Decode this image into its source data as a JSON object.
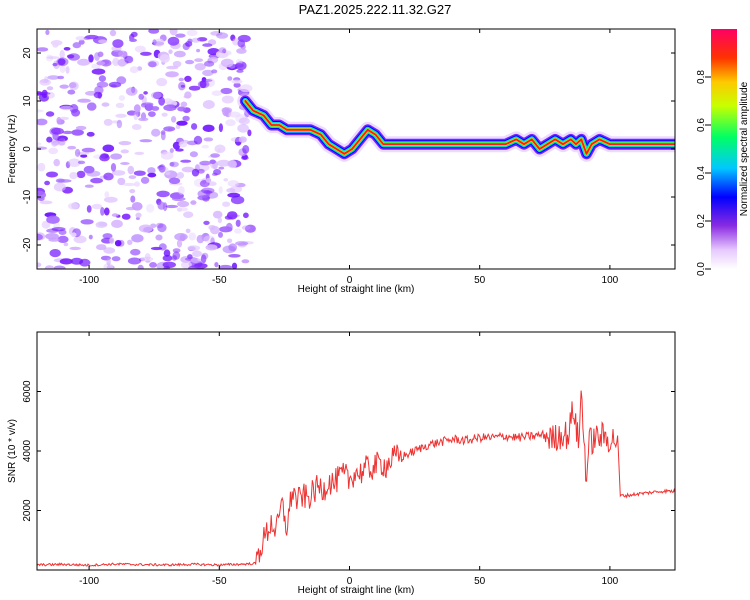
{
  "title": "PAZ1.2025.222.11.32.G27",
  "colors": {
    "snr_line": "#ee3333",
    "spectrogram_noise": "#7b1fff"
  },
  "chart_data": [
    {
      "type": "heatmap",
      "xlabel": "Height of straight line (km)",
      "ylabel": "Frequency (Hz)",
      "xlim": [
        -120,
        125
      ],
      "ylim": [
        -25,
        25
      ],
      "xticks": [
        -100,
        -50,
        0,
        50,
        100
      ],
      "yticks": [
        -20,
        -10,
        0,
        10,
        20
      ],
      "noise_region_x": [
        -120,
        -38
      ],
      "ridge": {
        "x": [
          -40,
          -37,
          -33,
          -30,
          -27,
          -24,
          -20,
          -15,
          -11,
          -8,
          -5,
          -2,
          1,
          4,
          7,
          10,
          13,
          18,
          25,
          40,
          60,
          64,
          67,
          70,
          73,
          76,
          79,
          82,
          85,
          87,
          89,
          91,
          93,
          96,
          100,
          105,
          110,
          125
        ],
        "y": [
          10,
          8,
          7,
          5,
          5,
          4,
          4,
          4,
          3,
          1,
          0,
          -1,
          0,
          2,
          4,
          3,
          1,
          1,
          1,
          1,
          1,
          2,
          1,
          2,
          0,
          1,
          2,
          1,
          2,
          1,
          2,
          -1,
          1,
          2,
          1,
          1,
          1,
          1
        ]
      },
      "colorbar": {
        "label": "Normalized spectral amplitude",
        "ticks": [
          "0.0",
          "0.2",
          "0.4",
          "0.6",
          "0.8"
        ],
        "range": [
          0,
          1
        ]
      }
    },
    {
      "type": "line",
      "xlabel": "Height of straight line (km)",
      "ylabel": "SNR (10 * v/v)",
      "xlim": [
        -120,
        125
      ],
      "ylim": [
        0,
        8000
      ],
      "xticks": [
        -100,
        -50,
        0,
        50,
        100
      ],
      "yticks": [
        2000,
        4000,
        6000
      ],
      "series": [
        {
          "x": [
            -120,
            -110,
            -100,
            -90,
            -80,
            -70,
            -60,
            -50,
            -40,
            -36,
            -34,
            -32,
            -30,
            -28,
            -26,
            -24,
            -22,
            -20,
            -18,
            -16,
            -14,
            -12,
            -10,
            -8,
            -6,
            -4,
            -2,
            0,
            2,
            4,
            6,
            8,
            10,
            12,
            14,
            16,
            18,
            20,
            25,
            30,
            35,
            40,
            45,
            50,
            55,
            60,
            65,
            70,
            75,
            78,
            80,
            82,
            84,
            86,
            88,
            89,
            90,
            91,
            92,
            94,
            96,
            98,
            100,
            102,
            103,
            104,
            106,
            110,
            115,
            120,
            125
          ],
          "y": [
            170,
            190,
            160,
            200,
            180,
            170,
            190,
            170,
            200,
            220,
            800,
            1200,
            1600,
            1300,
            2200,
            1400,
            2700,
            2300,
            2500,
            2400,
            2600,
            2800,
            2700,
            3000,
            2900,
            3100,
            3200,
            3000,
            3300,
            3250,
            3400,
            3400,
            3500,
            3600,
            3500,
            3700,
            3800,
            3800,
            4000,
            4200,
            4300,
            4400,
            4350,
            4450,
            4450,
            4500,
            4450,
            4500,
            4550,
            4400,
            4500,
            4600,
            4500,
            5500,
            4200,
            6000,
            4500,
            3000,
            4300,
            4400,
            4500,
            4450,
            4400,
            4400,
            4400,
            2500,
            2500,
            2550,
            2600,
            2650,
            2650
          ]
        }
      ]
    }
  ]
}
